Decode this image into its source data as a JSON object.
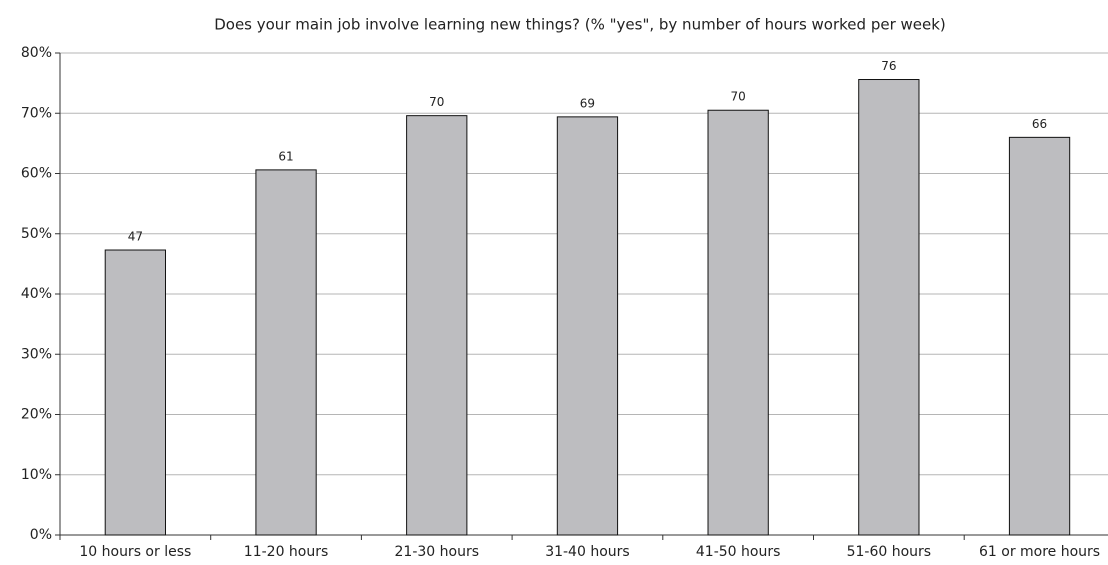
{
  "chart_data": {
    "type": "bar",
    "title": "Does your main job involve learning new things? (% \"yes\", by number of hours worked per week)",
    "categories": [
      "10 hours or less",
      "11-20 hours",
      "21-30 hours",
      "31-40 hours",
      "41-50 hours",
      "51-60 hours",
      "61 or more hours"
    ],
    "values": [
      47.3,
      60.6,
      69.6,
      69.4,
      70.5,
      75.6,
      66.0
    ],
    "value_labels": [
      "47",
      "61",
      "70",
      "69",
      "70",
      "76",
      "66"
    ],
    "color": "#bdbdc0",
    "ylim": [
      0,
      80
    ],
    "yticks": [
      {
        "value": 0,
        "label": "0%"
      },
      {
        "value": 10,
        "label": "10%"
      },
      {
        "value": 20,
        "label": "20%"
      },
      {
        "value": 30,
        "label": "30%"
      },
      {
        "value": 40,
        "label": "40%"
      },
      {
        "value": 50,
        "label": "50%"
      },
      {
        "value": 60,
        "label": "60%"
      },
      {
        "value": 70,
        "label": "70%"
      },
      {
        "value": 80,
        "label": "80%"
      }
    ],
    "grid": true
  }
}
